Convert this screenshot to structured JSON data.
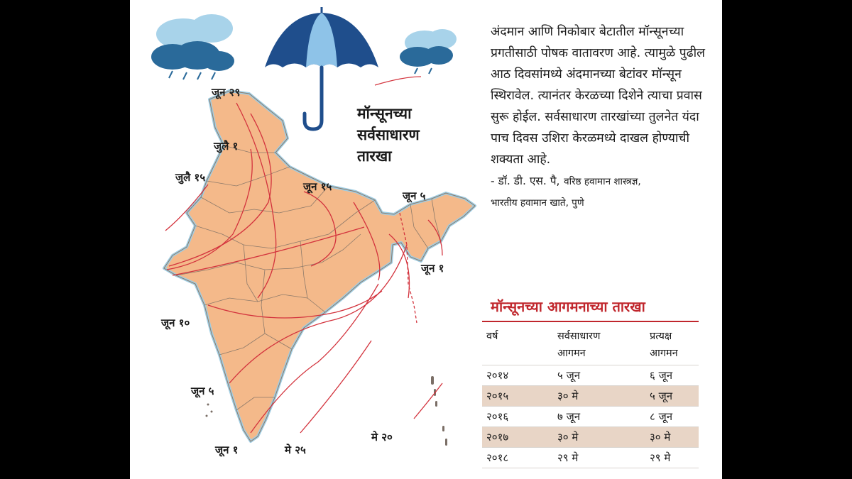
{
  "map": {
    "title_lines": [
      "मॉन्सूनच्या",
      "सर्वसाधारण",
      "तारखा"
    ],
    "date_labels": {
      "jun29": "जून २९",
      "jul1": "जुलै १",
      "jul15": "जुलै १५",
      "jun15": "जून १५",
      "jun5_ne": "जून ५",
      "jun1_east": "जून १",
      "jun10": "जून १०",
      "jun5_west": "जून ५",
      "jun1_south": "जून १",
      "may25": "मे २५",
      "may20": "मे २०"
    },
    "colors": {
      "land": "#f4b98a",
      "border": "#8d7a6a",
      "coast": "#9fcde3",
      "isoline": "#d3333d",
      "umbrella_dark": "#1f4e8c",
      "umbrella_light": "#8ec3e8",
      "cloud_dark": "#2a6a9a",
      "cloud_light": "#a8d3ea"
    },
    "icons": [
      "umbrella-icon",
      "rain-cloud-icon"
    ]
  },
  "quote": {
    "paragraph": "अंदमान आणि निकोबार बेटातील मॉन्सूनच्या प्रगतीसाठी पोषक वातावरण आहे. त्यामुळे पुढील आठ दिवसांमध्ये अंदमानच्या बेटांवर मॉन्सून स्थिरावेल. त्यानंतर केरळच्या दिशेने त्याचा प्रवास सुरू होईल. सर्वसाधारण तारखांच्या तुलनेत यंदा पाच दिवस उशिरा केरळमध्ये दाखल होण्याची शक्यता आहे.",
    "author": "- डॉ. डी. एस. पै,",
    "role1": "वरिष्ठ हवामान शास्त्रज्ञ,",
    "role2": "भारतीय हवामान खाते, पुणे"
  },
  "table": {
    "title": "मॉन्सूनच्या आगमनाच्या तारखा",
    "headers": {
      "year": "वर्ष",
      "normal_l1": "सर्वसाधारण",
      "normal_l2": "आगमन",
      "actual_l1": "प्रत्यक्ष",
      "actual_l2": "आगमन"
    },
    "rows": [
      {
        "year": "२०१४",
        "normal": "५ जून",
        "actual": "६ जून"
      },
      {
        "year": "२०१५",
        "normal": "३० मे",
        "actual": "५ जून"
      },
      {
        "year": "२०१६",
        "normal": "७ जून",
        "actual": "८ जून"
      },
      {
        "year": "२०१७",
        "normal": "३० मे",
        "actual": "३० मे"
      },
      {
        "year": "२०१८",
        "normal": "२९ मे",
        "actual": "२९ मे"
      }
    ],
    "colors": {
      "title": "#c0262c",
      "shade": "#e8d5c6"
    }
  }
}
